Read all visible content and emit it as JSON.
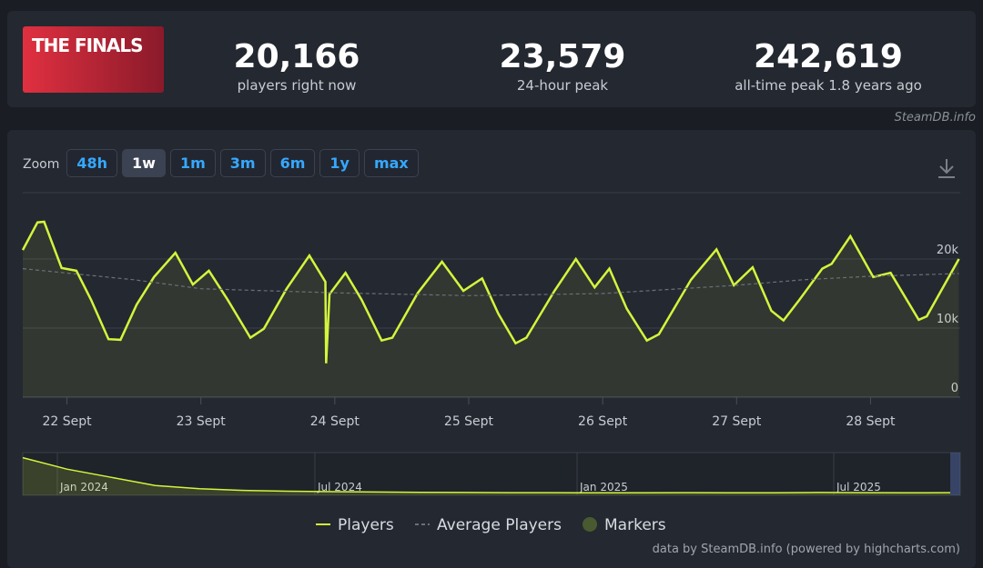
{
  "header": {
    "game_logo": "THE FINALS",
    "stats": [
      {
        "value": "20,166",
        "label": "players right now"
      },
      {
        "value": "23,579",
        "label": "24-hour peak"
      },
      {
        "value": "242,619",
        "label": "all-time peak 1.8 years ago"
      }
    ],
    "watermark": "SteamDB.info"
  },
  "zoom": {
    "label": "Zoom",
    "buttons": [
      "48h",
      "1w",
      "1m",
      "3m",
      "6m",
      "1y",
      "max"
    ],
    "active": 1
  },
  "chart_data": {
    "type": "line",
    "xlim": [
      21.67,
      28.67
    ],
    "xticks": [
      {
        "value": 22,
        "label": "22 Sept"
      },
      {
        "value": 23,
        "label": "23 Sept"
      },
      {
        "value": 24,
        "label": "24 Sept"
      },
      {
        "value": 25,
        "label": "25 Sept"
      },
      {
        "value": 26,
        "label": "26 Sept"
      },
      {
        "value": 27,
        "label": "27 Sept"
      },
      {
        "value": 28,
        "label": "28 Sept"
      }
    ],
    "ylim": [
      0,
      30000
    ],
    "yticks": [
      0,
      {
        "value": 10000,
        "label": "10k"
      },
      {
        "value": 20000,
        "label": "20k"
      }
    ],
    "grid": true,
    "series": [
      {
        "name": "Players",
        "color": "#d4f53c",
        "x": [
          21.67,
          21.78,
          21.83,
          21.96,
          22.07,
          22.18,
          22.31,
          22.4,
          22.52,
          22.65,
          22.81,
          22.94,
          23.06,
          23.2,
          23.37,
          23.47,
          23.64,
          23.81,
          23.93,
          23.935,
          23.96,
          24.08,
          24.2,
          24.35,
          24.43,
          24.62,
          24.8,
          24.96,
          25.1,
          25.22,
          25.35,
          25.43,
          25.64,
          25.8,
          25.94,
          26.05,
          26.18,
          26.33,
          26.42,
          26.66,
          26.85,
          26.98,
          27.12,
          27.26,
          27.35,
          27.47,
          27.64,
          27.71,
          27.85,
          28.02,
          28.15,
          28.36,
          28.42,
          28.66
        ],
        "values": [
          21300,
          25300,
          25400,
          18700,
          18300,
          14100,
          8400,
          8300,
          13400,
          17400,
          20900,
          16300,
          18300,
          14100,
          8600,
          9900,
          15700,
          20500,
          16700,
          4900,
          14900,
          18000,
          14100,
          8200,
          8600,
          15100,
          19600,
          15400,
          17200,
          12100,
          7800,
          8600,
          15400,
          20000,
          15900,
          18600,
          12800,
          8200,
          9100,
          17000,
          21400,
          16200,
          18800,
          12500,
          11100,
          14100,
          18600,
          19300,
          23300,
          17400,
          18000,
          11200,
          11700,
          20000
        ]
      },
      {
        "name": "Average Players",
        "color": "#6b6f76",
        "x": [
          21.67,
          22.5,
          23,
          24,
          25,
          26,
          27,
          27.5,
          28,
          28.66
        ],
        "values": [
          18600,
          17000,
          15700,
          15100,
          14700,
          15000,
          16200,
          17000,
          17500,
          17900
        ]
      }
    ],
    "markers": {
      "name": "Markers",
      "color": "#4a5a30"
    },
    "navigator": {
      "labels": [
        "Jan 2024",
        "Jul 2024",
        "Jan 2025",
        "Jul 2025"
      ],
      "ylim": [
        0,
        250000
      ],
      "values": [
        230000,
        160000,
        110000,
        60000,
        40000,
        30000,
        25000,
        22000,
        20000,
        18000,
        17000,
        16000,
        16000,
        15000,
        15000,
        16000,
        15000,
        15000,
        17000,
        16000,
        15000,
        16000
      ]
    },
    "credit": "data by SteamDB.info (powered by highcharts.com)"
  }
}
